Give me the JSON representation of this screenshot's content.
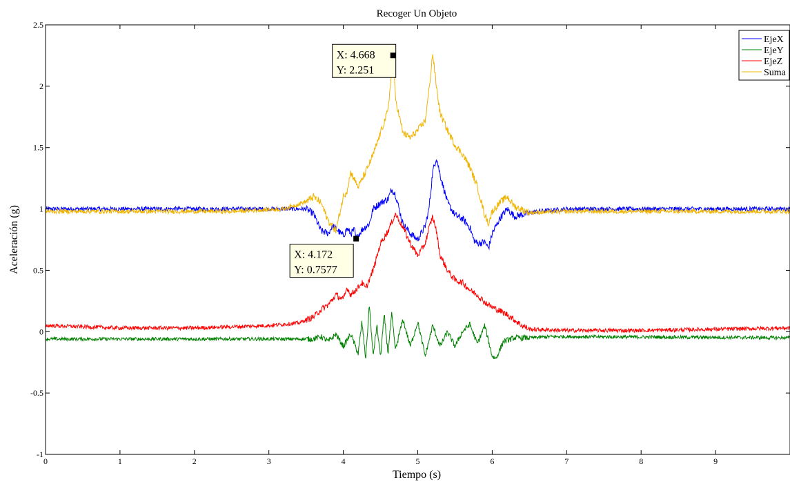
{
  "chart_data": {
    "type": "line",
    "title": "Recoger Un Objeto",
    "xlabel": "Tiempo (s)",
    "ylabel": "Aceleración (g)",
    "xlim": [
      0,
      10
    ],
    "ylim": [
      -1,
      2.5
    ],
    "x_ticks": [
      "0",
      "1",
      "2",
      "3",
      "4",
      "5",
      "6",
      "7",
      "8",
      "9"
    ],
    "y_ticks": [
      "-1",
      "-0.5",
      "0",
      "0.5",
      "1",
      "1.5",
      "2",
      "2.5"
    ],
    "grid": false,
    "legend_position": "top-right",
    "series": [
      {
        "name": "EjeX",
        "color": "#0000ff",
        "noise": 0.018,
        "points": [
          [
            0,
            1.0
          ],
          [
            3.5,
            1.0
          ],
          [
            3.6,
            0.96
          ],
          [
            3.7,
            0.82
          ],
          [
            3.8,
            0.8
          ],
          [
            3.85,
            0.86
          ],
          [
            3.9,
            0.84
          ],
          [
            4.0,
            0.78
          ],
          [
            4.05,
            0.84
          ],
          [
            4.1,
            0.8
          ],
          [
            4.15,
            0.83
          ],
          [
            4.172,
            0.7577
          ],
          [
            4.25,
            0.83
          ],
          [
            4.35,
            0.88
          ],
          [
            4.4,
            1.0
          ],
          [
            4.5,
            1.05
          ],
          [
            4.6,
            1.08
          ],
          [
            4.65,
            1.16
          ],
          [
            4.7,
            1.12
          ],
          [
            4.75,
            1.0
          ],
          [
            4.8,
            0.88
          ],
          [
            4.9,
            0.8
          ],
          [
            5.0,
            0.75
          ],
          [
            5.1,
            0.86
          ],
          [
            5.15,
            1.0
          ],
          [
            5.2,
            1.3
          ],
          [
            5.25,
            1.42
          ],
          [
            5.3,
            1.28
          ],
          [
            5.4,
            1.05
          ],
          [
            5.5,
            0.95
          ],
          [
            5.6,
            0.92
          ],
          [
            5.7,
            0.85
          ],
          [
            5.75,
            0.75
          ],
          [
            5.8,
            0.72
          ],
          [
            5.9,
            0.73
          ],
          [
            5.95,
            0.68
          ],
          [
            6.0,
            0.8
          ],
          [
            6.1,
            0.92
          ],
          [
            6.2,
            1.0
          ],
          [
            6.3,
            0.94
          ],
          [
            6.45,
            0.96
          ],
          [
            6.6,
            0.98
          ],
          [
            7.0,
            1.0
          ],
          [
            10,
            1.0
          ]
        ]
      },
      {
        "name": "EjeY",
        "color": "#008000",
        "noise": 0.014,
        "points": [
          [
            0,
            -0.06
          ],
          [
            3.6,
            -0.06
          ],
          [
            3.7,
            -0.04
          ],
          [
            3.8,
            -0.08
          ],
          [
            3.9,
            -0.02
          ],
          [
            4.0,
            -0.12
          ],
          [
            4.1,
            -0.02
          ],
          [
            4.2,
            -0.18
          ],
          [
            4.25,
            0.08
          ],
          [
            4.3,
            -0.22
          ],
          [
            4.35,
            0.22
          ],
          [
            4.4,
            -0.2
          ],
          [
            4.45,
            0.05
          ],
          [
            4.5,
            -0.2
          ],
          [
            4.55,
            0.14
          ],
          [
            4.6,
            -0.18
          ],
          [
            4.65,
            0.14
          ],
          [
            4.7,
            -0.15
          ],
          [
            4.8,
            0.1
          ],
          [
            4.9,
            -0.12
          ],
          [
            5.0,
            0.08
          ],
          [
            5.1,
            -0.2
          ],
          [
            5.2,
            0.05
          ],
          [
            5.3,
            -0.12
          ],
          [
            5.4,
            0.0
          ],
          [
            5.5,
            -0.12
          ],
          [
            5.6,
            0.0
          ],
          [
            5.7,
            0.06
          ],
          [
            5.8,
            -0.1
          ],
          [
            5.9,
            0.05
          ],
          [
            6.0,
            -0.2
          ],
          [
            6.05,
            -0.22
          ],
          [
            6.15,
            -0.08
          ],
          [
            6.3,
            -0.05
          ],
          [
            6.5,
            -0.05
          ],
          [
            6.8,
            -0.04
          ],
          [
            10,
            -0.05
          ]
        ]
      },
      {
        "name": "EjeZ",
        "color": "#ff0000",
        "noise": 0.016,
        "points": [
          [
            0,
            0.05
          ],
          [
            1,
            0.03
          ],
          [
            2,
            0.03
          ],
          [
            3,
            0.05
          ],
          [
            3.4,
            0.07
          ],
          [
            3.6,
            0.12
          ],
          [
            3.7,
            0.18
          ],
          [
            3.8,
            0.22
          ],
          [
            3.9,
            0.3
          ],
          [
            4.0,
            0.26
          ],
          [
            4.05,
            0.36
          ],
          [
            4.1,
            0.3
          ],
          [
            4.2,
            0.36
          ],
          [
            4.25,
            0.4
          ],
          [
            4.3,
            0.35
          ],
          [
            4.4,
            0.5
          ],
          [
            4.5,
            0.72
          ],
          [
            4.6,
            0.82
          ],
          [
            4.7,
            0.96
          ],
          [
            4.8,
            0.85
          ],
          [
            4.9,
            0.72
          ],
          [
            5.0,
            0.62
          ],
          [
            5.1,
            0.72
          ],
          [
            5.15,
            0.84
          ],
          [
            5.2,
            0.94
          ],
          [
            5.25,
            0.82
          ],
          [
            5.3,
            0.62
          ],
          [
            5.4,
            0.5
          ],
          [
            5.5,
            0.42
          ],
          [
            5.6,
            0.4
          ],
          [
            5.7,
            0.34
          ],
          [
            5.8,
            0.3
          ],
          [
            5.9,
            0.24
          ],
          [
            6.0,
            0.2
          ],
          [
            6.2,
            0.14
          ],
          [
            6.4,
            0.05
          ],
          [
            6.5,
            0.02
          ],
          [
            7.0,
            0.01
          ],
          [
            8.0,
            0.01
          ],
          [
            9.0,
            0.02
          ],
          [
            10,
            0.03
          ]
        ]
      },
      {
        "name": "Suma",
        "color": "#f0b400",
        "noise": 0.018,
        "points": [
          [
            0,
            0.98
          ],
          [
            2.5,
            0.98
          ],
          [
            3.2,
            1.0
          ],
          [
            3.5,
            1.06
          ],
          [
            3.6,
            1.1
          ],
          [
            3.7,
            1.05
          ],
          [
            3.8,
            0.9
          ],
          [
            3.9,
            0.82
          ],
          [
            4.0,
            1.1
          ],
          [
            4.05,
            1.15
          ],
          [
            4.1,
            1.3
          ],
          [
            4.15,
            1.24
          ],
          [
            4.2,
            1.18
          ],
          [
            4.3,
            1.3
          ],
          [
            4.4,
            1.44
          ],
          [
            4.5,
            1.62
          ],
          [
            4.6,
            1.8
          ],
          [
            4.668,
            2.251
          ],
          [
            4.7,
            1.9
          ],
          [
            4.8,
            1.62
          ],
          [
            4.9,
            1.58
          ],
          [
            5.0,
            1.64
          ],
          [
            5.1,
            1.72
          ],
          [
            5.15,
            1.96
          ],
          [
            5.2,
            2.27
          ],
          [
            5.25,
            2.0
          ],
          [
            5.3,
            1.78
          ],
          [
            5.4,
            1.64
          ],
          [
            5.5,
            1.52
          ],
          [
            5.6,
            1.45
          ],
          [
            5.7,
            1.34
          ],
          [
            5.8,
            1.18
          ],
          [
            5.9,
            0.95
          ],
          [
            5.95,
            0.88
          ],
          [
            6.0,
            0.98
          ],
          [
            6.1,
            1.05
          ],
          [
            6.2,
            1.1
          ],
          [
            6.3,
            1.02
          ],
          [
            6.5,
            0.97
          ],
          [
            7.0,
            0.98
          ],
          [
            10,
            0.98
          ]
        ]
      }
    ],
    "datatips": [
      {
        "series": "Suma",
        "x": 4.668,
        "y": 2.251,
        "label_x": "X: 4.668",
        "label_y": "Y: 2.251"
      },
      {
        "series": "EjeX",
        "x": 4.172,
        "y": 0.7577,
        "label_x": "X: 4.172",
        "label_y": "Y: 0.7577"
      }
    ]
  }
}
